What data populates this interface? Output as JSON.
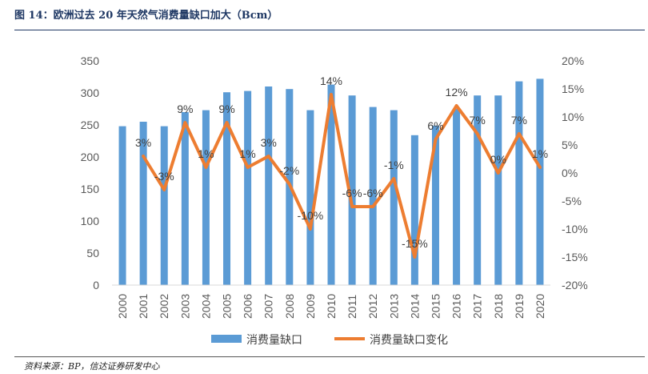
{
  "header": {
    "title": "图 14：欧洲过去 20 年天然气消费量缺口加大（Bcm）"
  },
  "footer": {
    "source": "资料来源：BP，信达证券研发中心"
  },
  "chart_data": {
    "type": "bar",
    "categories": [
      "2000",
      "2001",
      "2002",
      "2003",
      "2004",
      "2005",
      "2006",
      "2007",
      "2008",
      "2009",
      "2010",
      "2011",
      "2012",
      "2013",
      "2014",
      "2015",
      "2016",
      "2017",
      "2018",
      "2019",
      "2020"
    ],
    "series": [
      {
        "name": "消费量缺口",
        "type": "bar",
        "axis": "left",
        "color": "#5b9bd5",
        "values": [
          248,
          255,
          248,
          270,
          273,
          301,
          303,
          310,
          306,
          273,
          313,
          296,
          278,
          273,
          234,
          249,
          275,
          296,
          296,
          318,
          322
        ]
      },
      {
        "name": "消费量缺口变化",
        "type": "line",
        "axis": "right",
        "color": "#ed7d31",
        "values": [
          null,
          3,
          -3,
          9,
          1,
          9,
          1,
          3,
          -2,
          -10,
          14,
          -6,
          -6,
          -1,
          -15,
          6,
          12,
          7,
          0,
          7,
          1
        ],
        "labels": [
          "",
          "3%",
          "-3%",
          "9%",
          "1%",
          "9%",
          "1%",
          "3%",
          "-2%",
          "-10%",
          "14%",
          "-6%",
          "-6%",
          "-1%",
          "-15%",
          "6%",
          "12%",
          "7%",
          "0%",
          "7%",
          "1%"
        ]
      }
    ],
    "y_left": {
      "range": [
        0,
        350
      ],
      "ticks": [
        "0",
        "50",
        "100",
        "150",
        "200",
        "250",
        "300",
        "350"
      ]
    },
    "y_right": {
      "range": [
        -20,
        20
      ],
      "ticks": [
        "-20%",
        "-15%",
        "-10%",
        "-5%",
        "0%",
        "5%",
        "10%",
        "15%",
        "20%"
      ]
    },
    "grid": false,
    "legend_position": "bottom"
  }
}
